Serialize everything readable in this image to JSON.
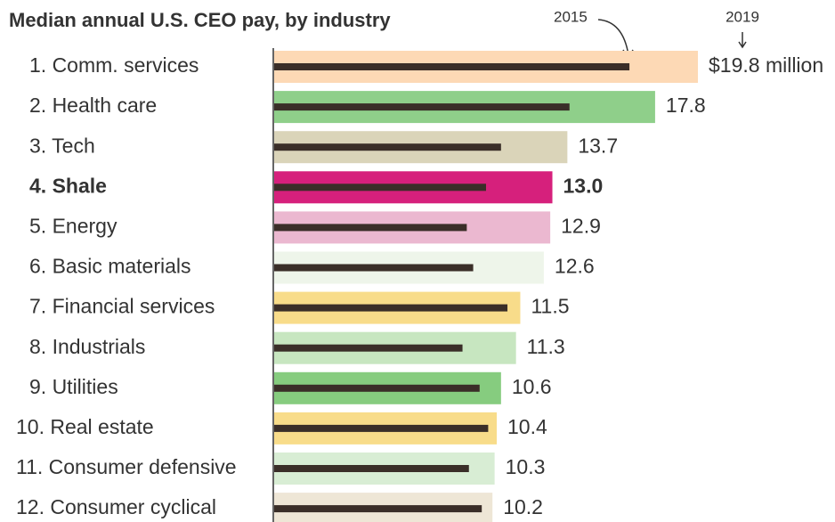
{
  "chart_data": {
    "type": "bar",
    "orientation": "horizontal",
    "title": "Median annual U.S. CEO pay, by industry",
    "categories": [
      "1. Comm. services",
      "2. Health care",
      "3. Tech",
      "4. Shale",
      "5. Energy",
      "6. Basic materials",
      "7. Financial services",
      "8. Industrials",
      "9. Utilities",
      "10. Real estate",
      "11. Consumer defensive",
      "12. Consumer cyclical"
    ],
    "series": [
      {
        "name": "2019",
        "colors": [
          "#fdd9b5",
          "#8fcf8a",
          "#dad4b9",
          "#d6207c",
          "#ebb8d0",
          "#eef5ea",
          "#f8dc8a",
          "#c7e6c0",
          "#86cc7f",
          "#f8dc8a",
          "#d8edd4",
          "#eee6d6"
        ],
        "values": [
          19.8,
          17.8,
          13.7,
          13.0,
          12.9,
          12.6,
          11.5,
          11.3,
          10.6,
          10.4,
          10.3,
          10.2
        ],
        "value_labels": [
          "$19.8 million",
          "17.8",
          "13.7",
          "13.0",
          "12.9",
          "12.6",
          "11.5",
          "11.3",
          "10.6",
          "10.4",
          "10.3",
          "10.2"
        ]
      },
      {
        "name": "2015",
        "color": "#3a2e28",
        "values": [
          16.6,
          13.8,
          10.6,
          9.9,
          9.0,
          9.3,
          10.9,
          8.8,
          9.6,
          10.0,
          9.1,
          9.7
        ]
      }
    ],
    "highlight_index": 3,
    "highlight_color": "#c8206f"
  }
}
